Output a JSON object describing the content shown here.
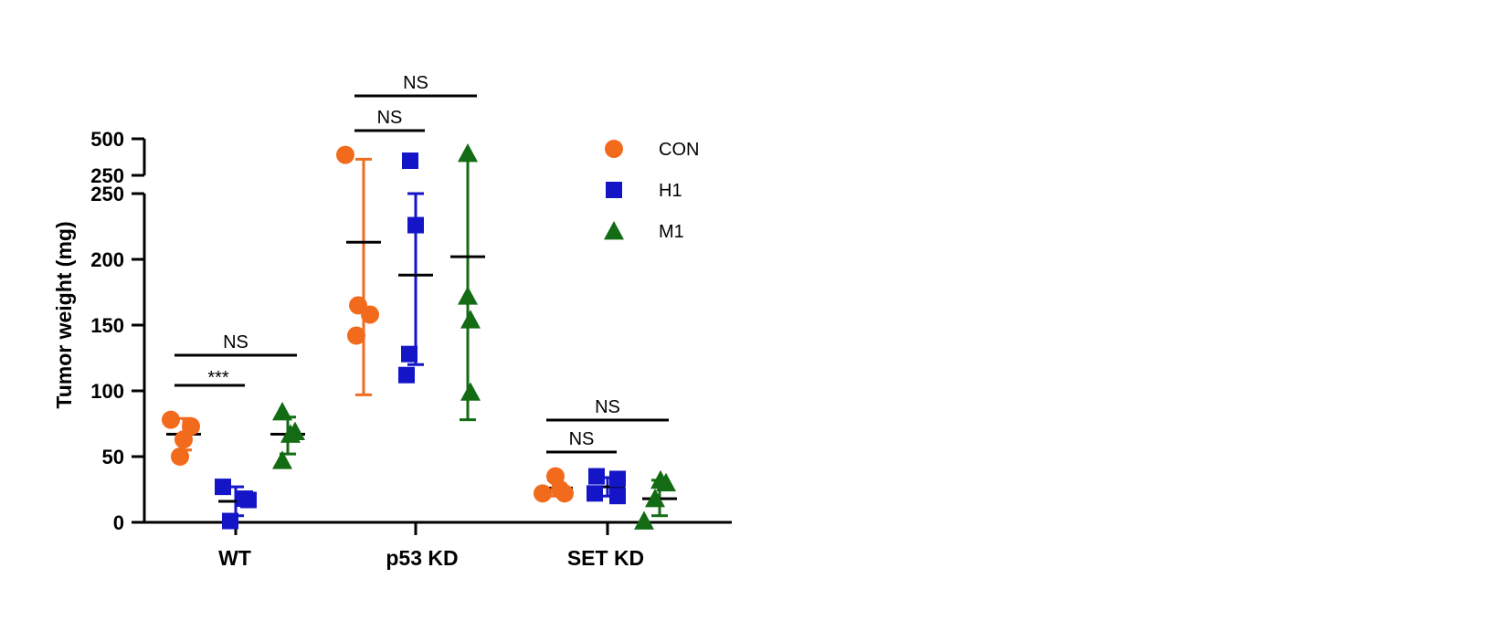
{
  "chart_data": {
    "type": "scatter",
    "ylabel": "Tumor weight (mg)",
    "categories": [
      "WT",
      "p53 KD",
      "SET KD"
    ],
    "y_axis": {
      "broken": true,
      "lower_segment": {
        "range": [
          0,
          250
        ],
        "ticks": [
          "0",
          "50",
          "100",
          "150",
          "200",
          "250"
        ]
      },
      "upper_segment": {
        "range": [
          250,
          500
        ],
        "ticks": [
          "250",
          "500"
        ]
      }
    },
    "legend": {
      "placement": "top-right",
      "entries": [
        "CON",
        "H1",
        "M1"
      ]
    },
    "series": [
      {
        "name": "CON",
        "color": "#f26b1d",
        "marker": "circle",
        "points": {
          "WT": [
            78,
            73,
            63,
            50
          ],
          "p53 KD": [
            390,
            165,
            158,
            142
          ],
          "SET KD": [
            35,
            25,
            22,
            22
          ]
        },
        "mean": {
          "WT": 67,
          "p53 KD": 213,
          "SET KD": 26
        },
        "sd": {
          "WT": [
            55,
            79
          ],
          "p53 KD": [
            97,
            360
          ],
          "SET KD": [
            20,
            32
          ]
        }
      },
      {
        "name": "H1",
        "color": "#1515c8",
        "marker": "square",
        "points": {
          "WT": [
            27,
            18,
            17,
            1
          ],
          "p53 KD": [
            350,
            226,
            128,
            112
          ],
          "SET KD": [
            35,
            33,
            22,
            20
          ]
        },
        "mean": {
          "WT": 16,
          "p53 KD": 188,
          "SET KD": 27
        },
        "sd": {
          "WT": [
            5,
            27
          ],
          "p53 KD": [
            120,
            250
          ],
          "SET KD": [
            20,
            34
          ]
        }
      },
      {
        "name": "M1",
        "color": "#136b13",
        "marker": "triangle",
        "points": {
          "WT": [
            84,
            69,
            67,
            47
          ],
          "p53 KD": [
            400,
            172,
            154,
            99
          ],
          "SET KD": [
            32,
            30,
            18,
            1
          ]
        },
        "mean": {
          "WT": 67,
          "p53 KD": 202,
          "SET KD": 18
        },
        "sd": {
          "WT": [
            52,
            80
          ],
          "p53 KD": [
            78,
            360
          ],
          "SET KD": [
            5,
            32
          ]
        }
      }
    ],
    "annotations": [
      {
        "group": "WT",
        "from": "CON",
        "to": "H1",
        "text": "***"
      },
      {
        "group": "WT",
        "from": "CON",
        "to": "M1",
        "text": "NS"
      },
      {
        "group": "p53 KD",
        "from": "CON",
        "to": "H1",
        "text": "NS"
      },
      {
        "group": "p53 KD",
        "from": "CON",
        "to": "M1",
        "text": "NS"
      },
      {
        "group": "SET KD",
        "from": "CON",
        "to": "H1",
        "text": "NS"
      },
      {
        "group": "SET KD",
        "from": "CON",
        "to": "M1",
        "text": "NS"
      }
    ]
  }
}
